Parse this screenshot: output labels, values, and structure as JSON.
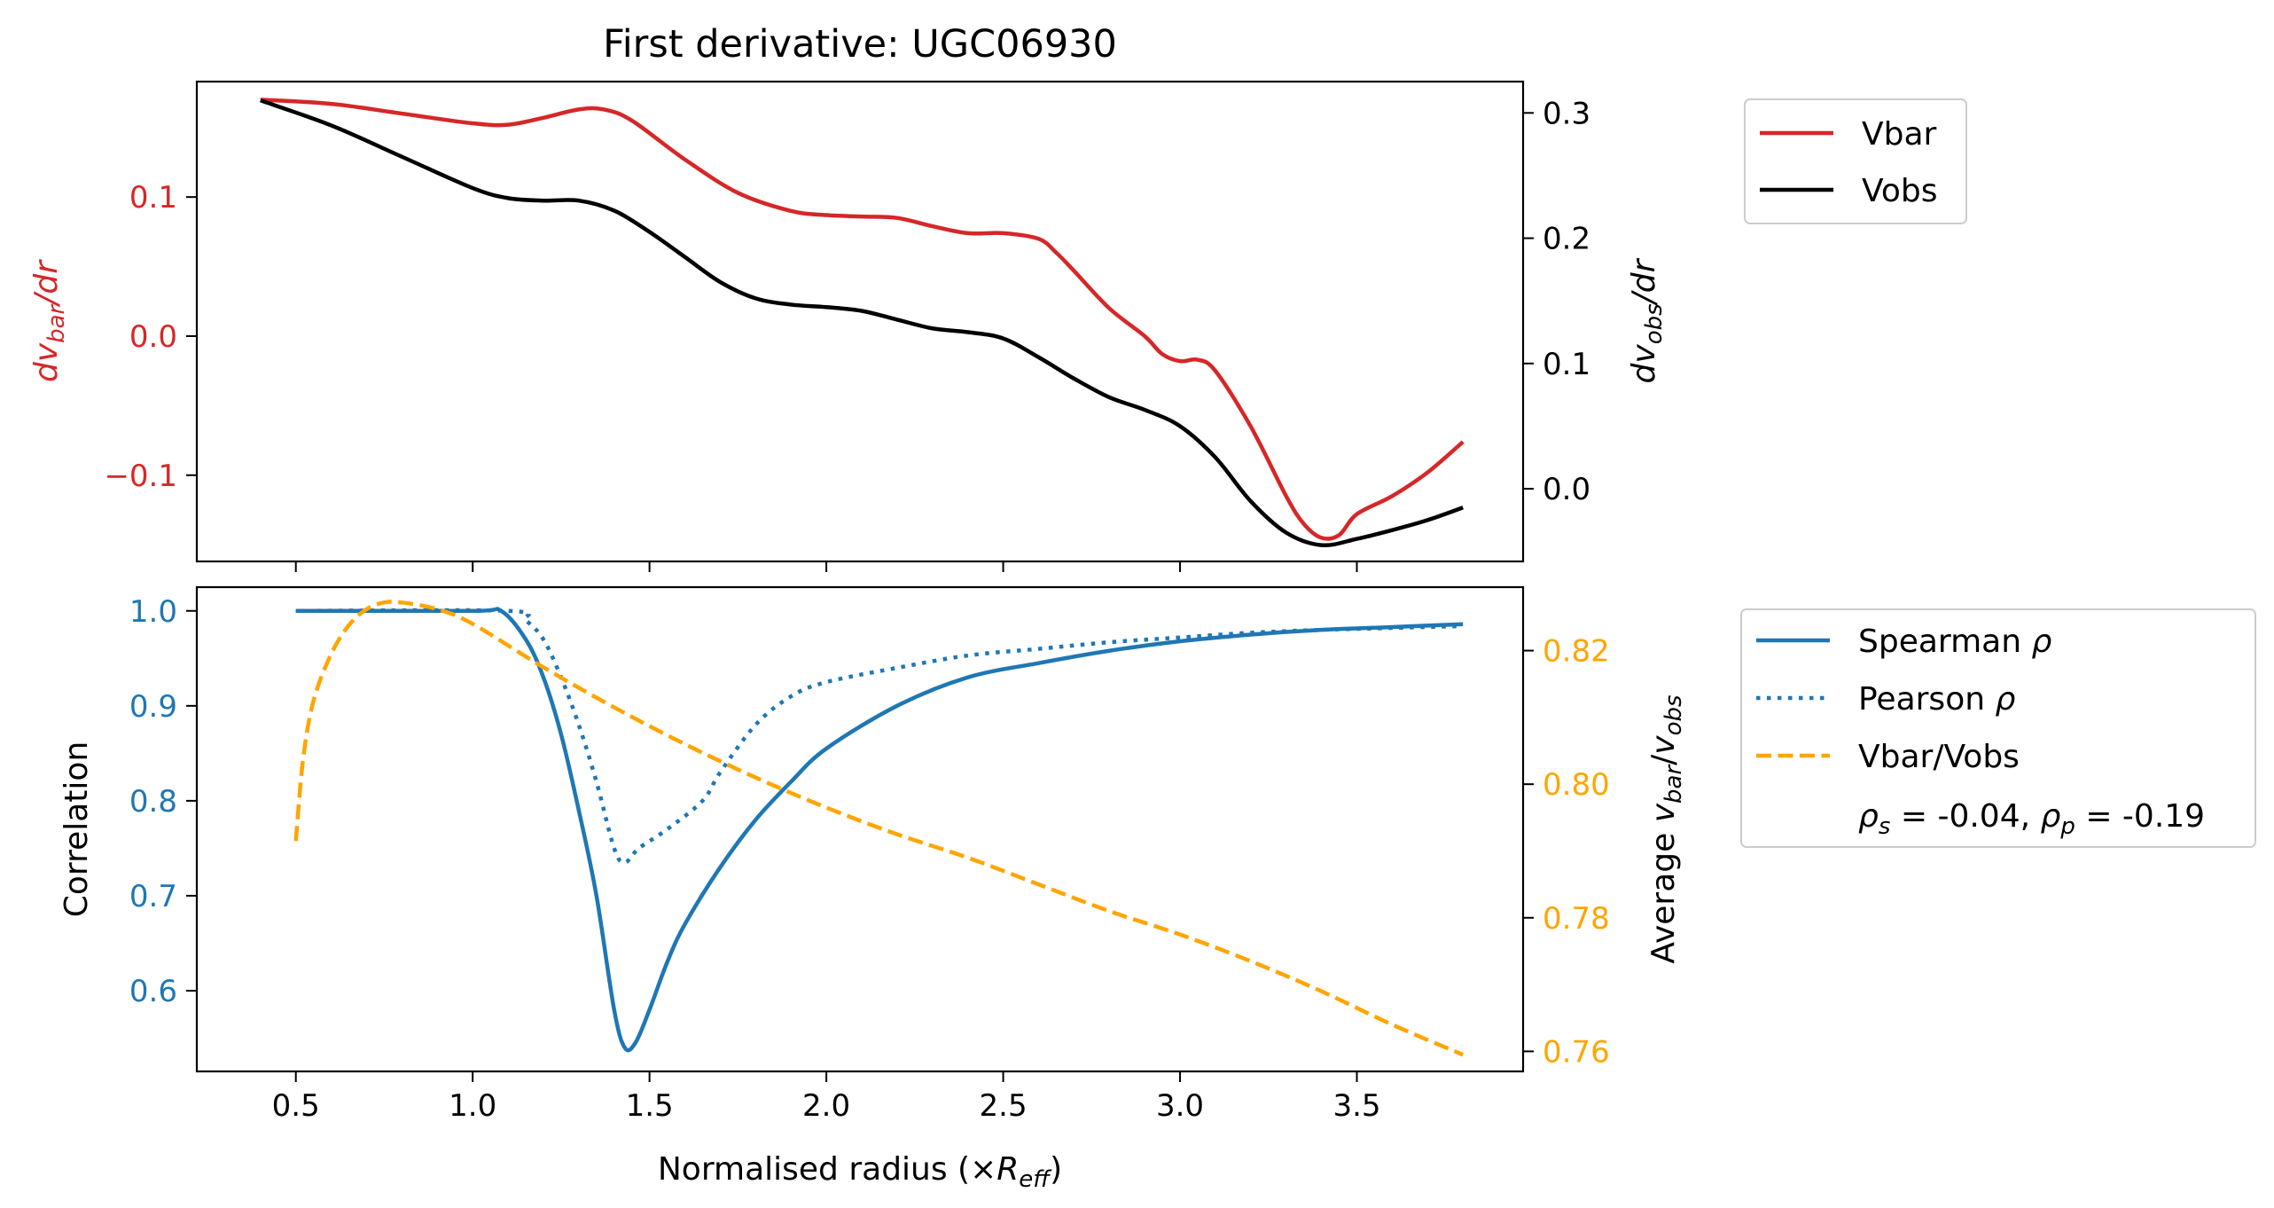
{
  "chart_data": [
    {
      "type": "line",
      "title": "First derivative: UGC06930",
      "left_axis": {
        "label": "dv_bar/dr",
        "color": "#d62728",
        "ylim": [
          -0.162,
          0.183
        ],
        "ticks": [
          0.1,
          0.0,
          -0.1
        ],
        "tick_labels": [
          "0.1",
          "0.0",
          "−0.1"
        ]
      },
      "right_axis": {
        "label": "dv_obs/dr",
        "color": "#000000",
        "ylim": [
          -0.058,
          0.325
        ],
        "ticks": [
          0.3,
          0.2,
          0.1,
          0.0
        ],
        "tick_labels": [
          "0.3",
          "0.2",
          "0.1",
          "0.0"
        ]
      },
      "xlim": [
        0.22,
        3.97
      ],
      "x_ticks": [
        0.5,
        1.0,
        1.5,
        2.0,
        2.5,
        3.0,
        3.5
      ],
      "legend": {
        "placement": "outside-right",
        "entries": [
          "Vbar",
          "Vobs"
        ]
      },
      "series": [
        {
          "name": "Vbar",
          "axis": "left",
          "color": "#d62728",
          "style": "solid",
          "points": [
            [
              0.4,
              0.17
            ],
            [
              0.6,
              0.167
            ],
            [
              0.8,
              0.16
            ],
            [
              1.0,
              0.153
            ],
            [
              1.1,
              0.152
            ],
            [
              1.2,
              0.157
            ],
            [
              1.3,
              0.163
            ],
            [
              1.37,
              0.163
            ],
            [
              1.45,
              0.155
            ],
            [
              1.6,
              0.127
            ],
            [
              1.75,
              0.103
            ],
            [
              1.9,
              0.09
            ],
            [
              2.0,
              0.087
            ],
            [
              2.1,
              0.086
            ],
            [
              2.2,
              0.085
            ],
            [
              2.3,
              0.079
            ],
            [
              2.4,
              0.074
            ],
            [
              2.5,
              0.074
            ],
            [
              2.6,
              0.07
            ],
            [
              2.65,
              0.06
            ],
            [
              2.7,
              0.047
            ],
            [
              2.8,
              0.02
            ],
            [
              2.9,
              0.0
            ],
            [
              2.95,
              -0.013
            ],
            [
              3.0,
              -0.018
            ],
            [
              3.05,
              -0.017
            ],
            [
              3.1,
              -0.025
            ],
            [
              3.2,
              -0.065
            ],
            [
              3.3,
              -0.115
            ],
            [
              3.35,
              -0.135
            ],
            [
              3.4,
              -0.145
            ],
            [
              3.45,
              -0.143
            ],
            [
              3.5,
              -0.128
            ],
            [
              3.6,
              -0.115
            ],
            [
              3.7,
              -0.098
            ],
            [
              3.8,
              -0.076
            ]
          ]
        },
        {
          "name": "Vobs",
          "axis": "right",
          "color": "#000000",
          "style": "solid",
          "points": [
            [
              0.4,
              0.31
            ],
            [
              0.6,
              0.29
            ],
            [
              0.8,
              0.265
            ],
            [
              1.0,
              0.24
            ],
            [
              1.1,
              0.232
            ],
            [
              1.2,
              0.23
            ],
            [
              1.3,
              0.23
            ],
            [
              1.4,
              0.222
            ],
            [
              1.5,
              0.205
            ],
            [
              1.6,
              0.185
            ],
            [
              1.7,
              0.165
            ],
            [
              1.8,
              0.152
            ],
            [
              1.9,
              0.147
            ],
            [
              2.0,
              0.145
            ],
            [
              2.1,
              0.142
            ],
            [
              2.2,
              0.135
            ],
            [
              2.3,
              0.128
            ],
            [
              2.4,
              0.125
            ],
            [
              2.5,
              0.12
            ],
            [
              2.6,
              0.105
            ],
            [
              2.7,
              0.088
            ],
            [
              2.8,
              0.073
            ],
            [
              2.9,
              0.063
            ],
            [
              3.0,
              0.05
            ],
            [
              3.1,
              0.025
            ],
            [
              3.2,
              -0.01
            ],
            [
              3.3,
              -0.035
            ],
            [
              3.4,
              -0.045
            ],
            [
              3.5,
              -0.04
            ],
            [
              3.6,
              -0.033
            ],
            [
              3.7,
              -0.025
            ],
            [
              3.8,
              -0.015
            ]
          ]
        }
      ]
    },
    {
      "type": "line",
      "xlabel": "Normalised radius (×R_eff)",
      "left_axis": {
        "label": "Correlation",
        "color": "#1f77b4",
        "ylim": [
          0.515,
          1.025
        ],
        "ticks": [
          1.0,
          0.9,
          0.8,
          0.7,
          0.6
        ],
        "tick_labels": [
          "1.0",
          "0.9",
          "0.8",
          "0.7",
          "0.6"
        ]
      },
      "right_axis": {
        "label": "Average v_bar/v_obs",
        "color": "#ffa500",
        "ylim": [
          0.757,
          0.8295
        ],
        "ticks": [
          0.82,
          0.8,
          0.78,
          0.76
        ],
        "tick_labels": [
          "0.82",
          "0.80",
          "0.78",
          "0.76"
        ]
      },
      "xlim": [
        0.22,
        3.97
      ],
      "x_ticks": [
        0.5,
        1.0,
        1.5,
        2.0,
        2.5,
        3.0,
        3.5
      ],
      "x_tick_labels": [
        "0.5",
        "1.0",
        "1.5",
        "2.0",
        "2.5",
        "3.0",
        "3.5"
      ],
      "legend": {
        "placement": "outside-right",
        "entries": [
          "Spearman ρ",
          "Pearson ρ",
          "Vbar/Vobs"
        ],
        "annotation": "ρs = -0.04, ρp = -0.19"
      },
      "series": [
        {
          "name": "Spearman ρ",
          "axis": "left",
          "color": "#1f77b4",
          "style": "solid",
          "points": [
            [
              0.5,
              1.0
            ],
            [
              1.0,
              1.0
            ],
            [
              1.08,
              1.0
            ],
            [
              1.15,
              0.97
            ],
            [
              1.2,
              0.93
            ],
            [
              1.25,
              0.87
            ],
            [
              1.3,
              0.79
            ],
            [
              1.35,
              0.7
            ],
            [
              1.4,
              0.58
            ],
            [
              1.43,
              0.54
            ],
            [
              1.46,
              0.545
            ],
            [
              1.5,
              0.58
            ],
            [
              1.55,
              0.63
            ],
            [
              1.6,
              0.67
            ],
            [
              1.7,
              0.73
            ],
            [
              1.8,
              0.78
            ],
            [
              1.9,
              0.82
            ],
            [
              2.0,
              0.855
            ],
            [
              2.2,
              0.9
            ],
            [
              2.4,
              0.93
            ],
            [
              2.6,
              0.945
            ],
            [
              2.8,
              0.958
            ],
            [
              3.0,
              0.968
            ],
            [
              3.2,
              0.975
            ],
            [
              3.4,
              0.98
            ],
            [
              3.6,
              0.983
            ],
            [
              3.8,
              0.986
            ]
          ]
        },
        {
          "name": "Pearson ρ",
          "axis": "left",
          "color": "#1f77b4",
          "style": "dotted",
          "points": [
            [
              0.5,
              1.0
            ],
            [
              1.1,
              1.0
            ],
            [
              1.15,
              0.99
            ],
            [
              1.2,
              0.97
            ],
            [
              1.25,
              0.93
            ],
            [
              1.3,
              0.88
            ],
            [
              1.35,
              0.82
            ],
            [
              1.4,
              0.75
            ],
            [
              1.43,
              0.735
            ],
            [
              1.47,
              0.75
            ],
            [
              1.55,
              0.77
            ],
            [
              1.65,
              0.8
            ],
            [
              1.7,
              0.83
            ],
            [
              1.8,
              0.88
            ],
            [
              1.9,
              0.91
            ],
            [
              2.0,
              0.925
            ],
            [
              2.2,
              0.94
            ],
            [
              2.4,
              0.953
            ],
            [
              2.6,
              0.96
            ],
            [
              2.8,
              0.967
            ],
            [
              3.0,
              0.972
            ],
            [
              3.2,
              0.977
            ],
            [
              3.4,
              0.98
            ],
            [
              3.6,
              0.982
            ],
            [
              3.8,
              0.984
            ]
          ]
        },
        {
          "name": "Vbar/Vobs",
          "axis": "right",
          "color": "#ffa500",
          "style": "dashed",
          "points": [
            [
              0.5,
              0.7915
            ],
            [
              0.52,
              0.8035
            ],
            [
              0.55,
              0.8125
            ],
            [
              0.6,
              0.8195
            ],
            [
              0.65,
              0.8238
            ],
            [
              0.7,
              0.8262
            ],
            [
              0.75,
              0.8272
            ],
            [
              0.8,
              0.8272
            ],
            [
              0.9,
              0.8262
            ],
            [
              1.0,
              0.824
            ],
            [
              1.2,
              0.8175
            ],
            [
              1.4,
              0.8115
            ],
            [
              1.6,
              0.806
            ],
            [
              1.8,
              0.801
            ],
            [
              2.0,
              0.7965
            ],
            [
              2.2,
              0.7925
            ],
            [
              2.4,
              0.789
            ],
            [
              2.6,
              0.785
            ],
            [
              2.8,
              0.781
            ],
            [
              3.0,
              0.7775
            ],
            [
              3.2,
              0.7735
            ],
            [
              3.4,
              0.769
            ],
            [
              3.6,
              0.764
            ],
            [
              3.8,
              0.7595
            ]
          ]
        }
      ]
    }
  ]
}
